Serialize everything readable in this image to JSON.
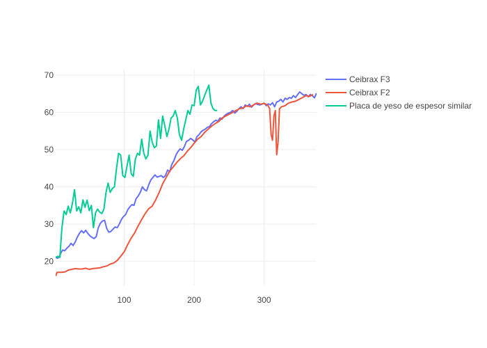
{
  "chart_data": {
    "type": "line",
    "title": "",
    "xlabel": "",
    "ylabel": "",
    "xlim": [
      2,
      375
    ],
    "ylim": [
      13.5,
      71.5
    ],
    "xticks": [
      100,
      200,
      300
    ],
    "yticks": [
      20,
      30,
      40,
      50,
      60,
      70
    ],
    "xtick_labels": [
      "100",
      "200",
      "300"
    ],
    "ytick_labels": [
      "20",
      "30",
      "40",
      "50",
      "60",
      "70"
    ],
    "grid": true,
    "legend_position": "top-right",
    "series": [
      {
        "name": "Ceibrax F3",
        "color": "#636efa",
        "x": [
          2,
          5,
          8,
          10,
          12,
          15,
          18,
          21,
          24,
          27,
          30,
          33,
          36,
          39,
          42,
          45,
          48,
          51,
          54,
          57,
          60,
          63,
          66,
          69,
          72,
          75,
          78,
          81,
          84,
          87,
          90,
          93,
          96,
          99,
          102,
          105,
          108,
          111,
          114,
          117,
          120,
          123,
          126,
          129,
          132,
          135,
          138,
          141,
          144,
          147,
          150,
          153,
          156,
          159,
          162,
          165,
          168,
          171,
          174,
          177,
          180,
          183,
          186,
          189,
          192,
          195,
          198,
          201,
          204,
          207,
          210,
          213,
          216,
          219,
          222,
          225,
          228,
          231,
          234,
          237,
          240,
          243,
          246,
          249,
          252,
          255,
          258,
          261,
          264,
          267,
          270,
          273,
          276,
          279,
          282,
          285,
          288,
          291,
          294,
          297,
          300,
          303,
          306,
          309,
          312,
          315,
          318,
          321,
          324,
          327,
          330,
          333,
          336,
          339,
          342,
          345,
          348,
          351,
          354,
          357,
          360,
          363,
          366,
          369,
          372,
          375
        ],
        "y": [
          21.0,
          20.8,
          21.5,
          22.4,
          23.0,
          22.8,
          23.5,
          24.0,
          24.8,
          24.2,
          25.2,
          26.5,
          27.5,
          28.2,
          27.6,
          28.3,
          27.5,
          26.8,
          26.4,
          26.1,
          26.6,
          29.0,
          30.2,
          30.8,
          31.0,
          28.8,
          27.8,
          28.0,
          28.6,
          29.2,
          29.0,
          30.0,
          31.2,
          32.0,
          32.5,
          33.8,
          34.6,
          35.2,
          35.0,
          36.8,
          37.5,
          38.5,
          40.0,
          39.2,
          38.9,
          40.5,
          41.8,
          42.5,
          43.2,
          42.6,
          42.8,
          43.0,
          42.5,
          43.0,
          44.5,
          44.0,
          46.0,
          47.0,
          48.5,
          49.5,
          50.2,
          49.8,
          50.8,
          52.2,
          52.5,
          53.0,
          52.6,
          52.0,
          53.5,
          54.0,
          54.8,
          55.2,
          55.5,
          56.0,
          56.2,
          57.0,
          57.5,
          57.9,
          57.6,
          58.5,
          58.2,
          59.0,
          59.5,
          59.8,
          60.0,
          60.5,
          59.8,
          60.3,
          61.0,
          61.5,
          61.0,
          62.0,
          61.6,
          62.2,
          61.4,
          62.0,
          62.4,
          62.1,
          62.0,
          62.2,
          62.5,
          61.8,
          62.3,
          62.0,
          62.6,
          61.5,
          62.8,
          63.0,
          63.5,
          62.8,
          63.8,
          63.5,
          64.0,
          63.8,
          64.5,
          64.0,
          64.8,
          65.5,
          65.0,
          64.6,
          64.8,
          64.2,
          64.8,
          64.5,
          63.9,
          65.2
        ]
      },
      {
        "name": "Ceibrax F2",
        "color": "#ef553b",
        "x": [
          2,
          4,
          6,
          10,
          15,
          20,
          25,
          30,
          35,
          40,
          45,
          50,
          55,
          60,
          65,
          70,
          75,
          80,
          85,
          90,
          95,
          100,
          105,
          110,
          115,
          120,
          125,
          130,
          135,
          140,
          145,
          150,
          155,
          160,
          165,
          170,
          175,
          180,
          185,
          190,
          195,
          200,
          205,
          210,
          215,
          220,
          225,
          230,
          235,
          240,
          245,
          250,
          255,
          260,
          265,
          270,
          275,
          280,
          285,
          290,
          295,
          300,
          305,
          308,
          310,
          312,
          314,
          316,
          318,
          320,
          322,
          325,
          330,
          335,
          340,
          345,
          350,
          355,
          360,
          365,
          370
        ],
        "y": [
          16.0,
          17.0,
          17.0,
          17.0,
          17.1,
          17.6,
          17.8,
          18.0,
          17.9,
          17.9,
          18.1,
          17.8,
          18.0,
          18.1,
          18.2,
          18.5,
          18.7,
          19.2,
          19.5,
          20.2,
          21.3,
          22.5,
          24.5,
          26.2,
          27.6,
          29.5,
          31.2,
          32.8,
          34.1,
          34.8,
          36.5,
          38.5,
          40.8,
          42.5,
          44.2,
          45.3,
          46.5,
          47.5,
          48.3,
          49.5,
          50.5,
          51.7,
          52.8,
          53.5,
          54.6,
          55.5,
          56.3,
          57.0,
          57.5,
          58.5,
          59.0,
          59.5,
          60.0,
          60.5,
          61.0,
          61.2,
          61.8,
          61.5,
          62.0,
          62.5,
          62.2,
          62.4,
          62.0,
          61.0,
          54.0,
          52.5,
          59.0,
          60.5,
          48.6,
          52.0,
          61.0,
          61.5,
          61.8,
          62.5,
          62.8,
          63.0,
          63.5,
          64.0,
          64.5,
          64.3,
          64.8
        ]
      },
      {
        "name": "Placa de yeso de espesor similar",
        "color": "#00cc96",
        "x": [
          2,
          5,
          8,
          11,
          14,
          17,
          20,
          23,
          26,
          29,
          32,
          35,
          38,
          41,
          44,
          47,
          50,
          53,
          56,
          59,
          62,
          65,
          68,
          71,
          74,
          77,
          80,
          83,
          86,
          89,
          92,
          95,
          98,
          101,
          104,
          107,
          110,
          113,
          116,
          119,
          122,
          125,
          128,
          131,
          134,
          137,
          140,
          143,
          146,
          149,
          152,
          155,
          158,
          161,
          164,
          167,
          170,
          173,
          176,
          179,
          182,
          185,
          188,
          191,
          194,
          197,
          200,
          203,
          206,
          209,
          212,
          215,
          218,
          221,
          224,
          227,
          230,
          233
        ],
        "y": [
          21.0,
          21.3,
          21.0,
          29.0,
          33.5,
          32.5,
          34.8,
          33.0,
          35.5,
          39.2,
          33.5,
          34.6,
          33.0,
          36.5,
          34.5,
          36.4,
          33.6,
          35.0,
          29.0,
          33.0,
          34.0,
          33.2,
          32.8,
          34.0,
          38.5,
          41.0,
          38.5,
          39.5,
          40.0,
          45.0,
          49.0,
          48.5,
          43.0,
          42.5,
          45.5,
          48.5,
          43.5,
          42.8,
          47.5,
          49.0,
          48.5,
          52.8,
          49.0,
          47.5,
          48.5,
          55.0,
          52.0,
          50.5,
          51.0,
          58.0,
          53.0,
          59.0,
          56.5,
          53.5,
          55.5,
          58.5,
          59.0,
          60.5,
          58.5,
          54.0,
          52.5,
          55.5,
          58.0,
          60.5,
          59.5,
          62.0,
          61.8,
          66.0,
          67.0,
          62.0,
          63.0,
          64.5,
          66.0,
          67.3,
          62.5,
          61.0,
          60.5,
          60.5
        ]
      }
    ]
  }
}
